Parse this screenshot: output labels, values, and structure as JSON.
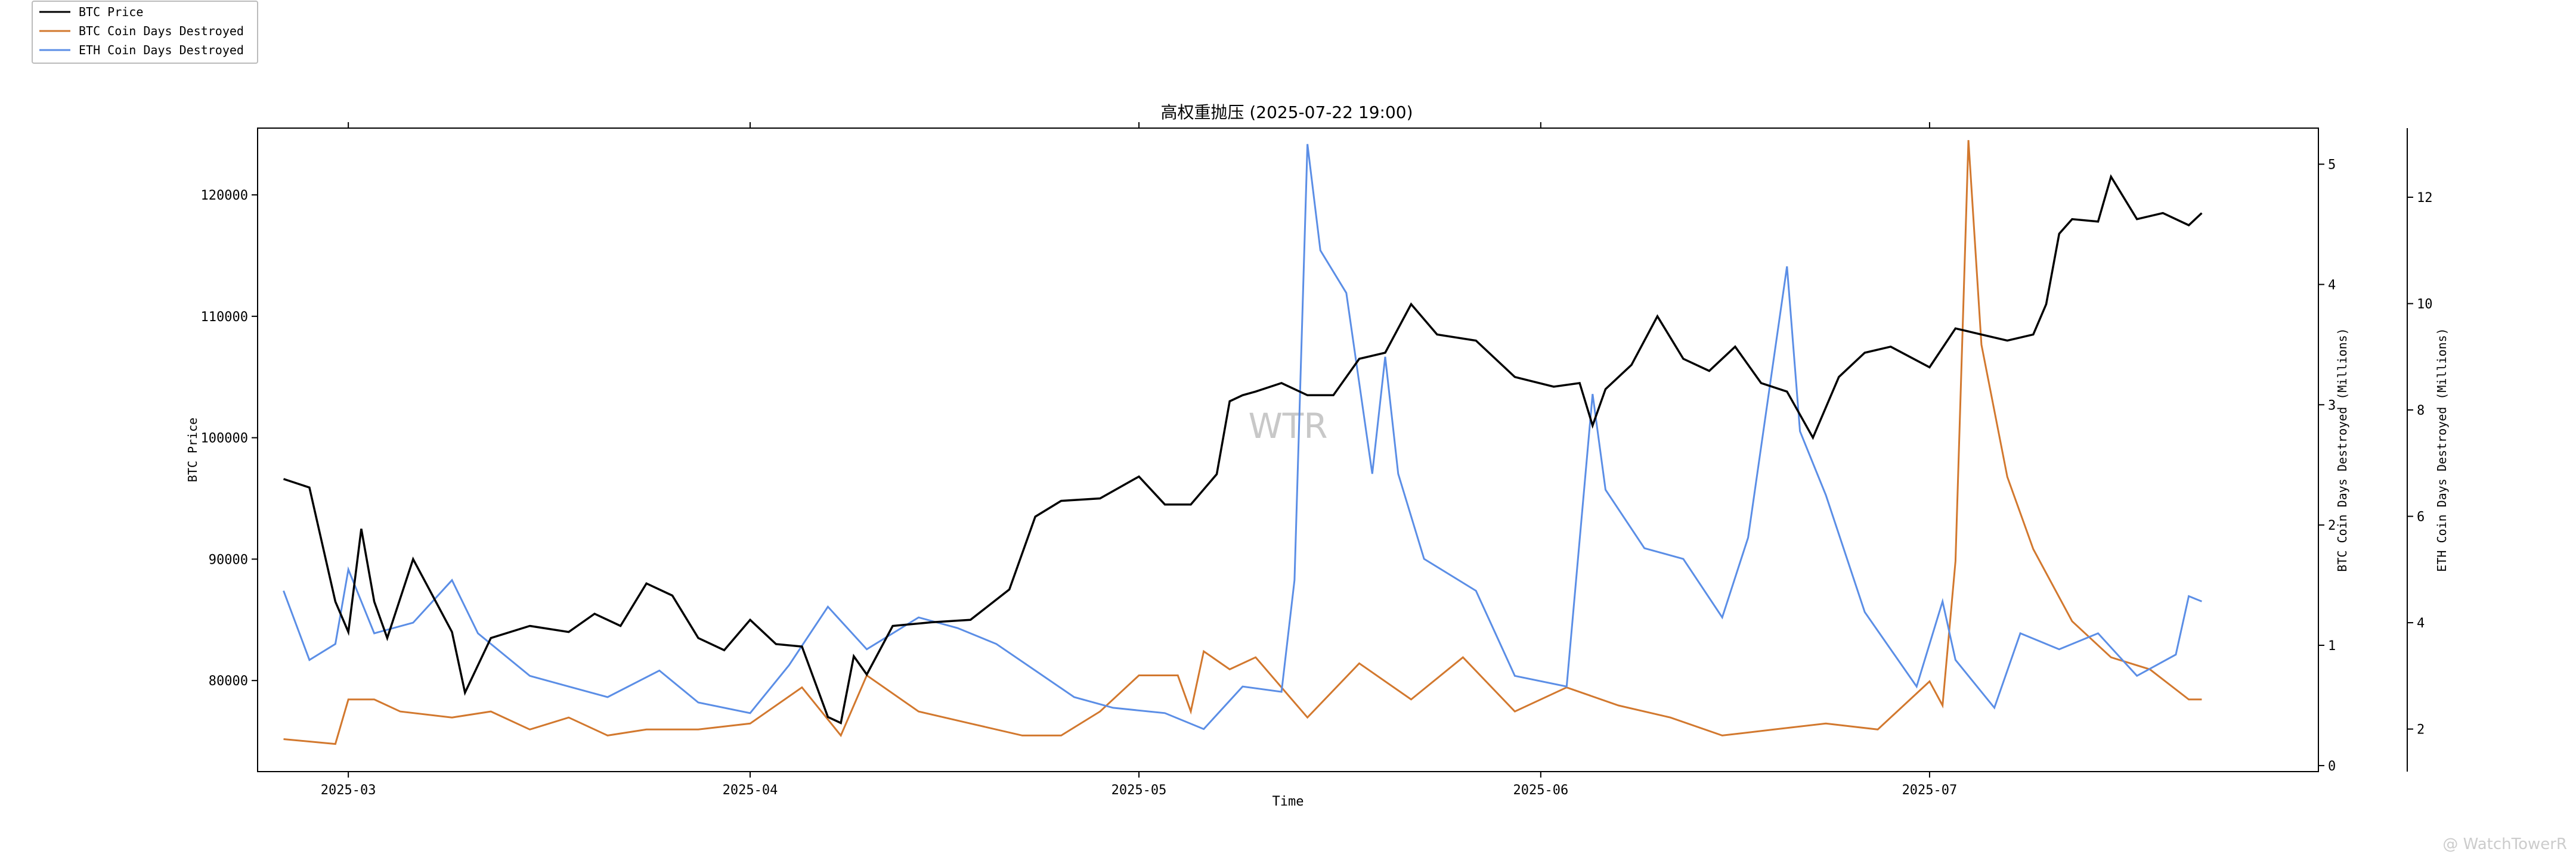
{
  "title": "高权重抛压 (2025-07-22 19:00)",
  "watermark": "WTR",
  "footer_watermark": "@ WatchTowerR",
  "legend": [
    {
      "label": "BTC Price",
      "color": "#000000"
    },
    {
      "label": "BTC Coin Days Destroyed",
      "color": "#d2782e"
    },
    {
      "label": "ETH Coin Days Destroyed",
      "color": "#5b8ee6"
    }
  ],
  "chart_data": {
    "type": "line",
    "title": "高权重抛压 (2025-07-22 19:00)",
    "xlabel": "Time",
    "x_range": [
      "2025-02-22",
      "2025-07-31"
    ],
    "x_ticks": [
      "2025-03",
      "2025-04",
      "2025-05",
      "2025-06",
      "2025-07"
    ],
    "axes": {
      "left": {
        "label": "BTC Price",
        "ylim": [
          72500,
          125500
        ],
        "ticks": [
          80000,
          90000,
          100000,
          110000,
          120000
        ]
      },
      "right1": {
        "label": "BTC Coin Days Destroyed (Millions)",
        "ylim": [
          -0.05,
          5.3
        ],
        "ticks": [
          0,
          1,
          2,
          3,
          4,
          5
        ]
      },
      "right2": {
        "label": "ETH Coin Days Destroyed (Millions)",
        "ylim": [
          1.2,
          13.3
        ],
        "ticks": [
          2,
          4,
          6,
          8,
          10,
          12
        ]
      }
    },
    "series": [
      {
        "name": "BTC Price",
        "axis": "left",
        "color": "#000000",
        "x": [
          "2025-02-24",
          "2025-02-26",
          "2025-02-28",
          "2025-03-01",
          "2025-03-02",
          "2025-03-03",
          "2025-03-04",
          "2025-03-06",
          "2025-03-07",
          "2025-03-09",
          "2025-03-10",
          "2025-03-12",
          "2025-03-15",
          "2025-03-18",
          "2025-03-20",
          "2025-03-22",
          "2025-03-24",
          "2025-03-26",
          "2025-03-28",
          "2025-03-30",
          "2025-04-01",
          "2025-04-03",
          "2025-04-05",
          "2025-04-07",
          "2025-04-08",
          "2025-04-09",
          "2025-04-10",
          "2025-04-12",
          "2025-04-15",
          "2025-04-18",
          "2025-04-21",
          "2025-04-23",
          "2025-04-25",
          "2025-04-28",
          "2025-05-01",
          "2025-05-03",
          "2025-05-05",
          "2025-05-07",
          "2025-05-08",
          "2025-05-09",
          "2025-05-10",
          "2025-05-12",
          "2025-05-14",
          "2025-05-16",
          "2025-05-18",
          "2025-05-20",
          "2025-05-22",
          "2025-05-24",
          "2025-05-27",
          "2025-05-30",
          "2025-06-02",
          "2025-06-04",
          "2025-06-05",
          "2025-06-06",
          "2025-06-08",
          "2025-06-10",
          "2025-06-12",
          "2025-06-14",
          "2025-06-16",
          "2025-06-18",
          "2025-06-20",
          "2025-06-22",
          "2025-06-24",
          "2025-06-26",
          "2025-06-28",
          "2025-07-01",
          "2025-07-03",
          "2025-07-05",
          "2025-07-07",
          "2025-07-09",
          "2025-07-10",
          "2025-07-11",
          "2025-07-12",
          "2025-07-14",
          "2025-07-15",
          "2025-07-17",
          "2025-07-19",
          "2025-07-21",
          "2025-07-22"
        ],
        "y": [
          96600,
          95900,
          86500,
          84000,
          92500,
          86500,
          83500,
          90000,
          88000,
          84000,
          79000,
          83500,
          84500,
          84000,
          85500,
          84500,
          88000,
          87000,
          83500,
          82500,
          85000,
          83000,
          82800,
          77000,
          76500,
          82000,
          80500,
          84500,
          84800,
          85000,
          87500,
          93500,
          94800,
          95000,
          96800,
          94500,
          94500,
          97000,
          103000,
          103500,
          103800,
          104500,
          103500,
          103500,
          106500,
          107000,
          111000,
          108500,
          108000,
          105000,
          104200,
          104500,
          101000,
          104000,
          106000,
          110000,
          106500,
          105500,
          107500,
          104500,
          103800,
          100000,
          105000,
          107000,
          107500,
          105800,
          109000,
          108500,
          108000,
          108500,
          111000,
          116800,
          118000,
          117800,
          121500,
          118000,
          118500,
          117500,
          118500
        ]
      },
      {
        "name": "BTC Coin Days Destroyed",
        "axis": "right1",
        "color": "#d2782e",
        "x": [
          "2025-02-24",
          "2025-02-28",
          "2025-03-01",
          "2025-03-03",
          "2025-03-05",
          "2025-03-09",
          "2025-03-12",
          "2025-03-15",
          "2025-03-18",
          "2025-03-21",
          "2025-03-24",
          "2025-03-28",
          "2025-04-01",
          "2025-04-05",
          "2025-04-08",
          "2025-04-10",
          "2025-04-14",
          "2025-04-18",
          "2025-04-22",
          "2025-04-25",
          "2025-04-28",
          "2025-05-01",
          "2025-05-04",
          "2025-05-05",
          "2025-05-06",
          "2025-05-08",
          "2025-05-10",
          "2025-05-14",
          "2025-05-18",
          "2025-05-22",
          "2025-05-26",
          "2025-05-30",
          "2025-06-03",
          "2025-06-07",
          "2025-06-11",
          "2025-06-15",
          "2025-06-19",
          "2025-06-23",
          "2025-06-27",
          "2025-07-01",
          "2025-07-02",
          "2025-07-03",
          "2025-07-04",
          "2025-07-05",
          "2025-07-07",
          "2025-07-09",
          "2025-07-12",
          "2025-07-15",
          "2025-07-18",
          "2025-07-21",
          "2025-07-22"
        ],
        "y": [
          0.22,
          0.18,
          0.55,
          0.55,
          0.45,
          0.4,
          0.45,
          0.3,
          0.4,
          0.25,
          0.3,
          0.3,
          0.35,
          0.65,
          0.25,
          0.75,
          0.45,
          0.35,
          0.25,
          0.25,
          0.45,
          0.75,
          0.75,
          0.45,
          0.95,
          0.8,
          0.9,
          0.4,
          0.85,
          0.55,
          0.9,
          0.45,
          0.65,
          0.5,
          0.4,
          0.25,
          0.3,
          0.35,
          0.3,
          0.7,
          0.5,
          1.7,
          5.2,
          3.5,
          2.4,
          1.8,
          1.2,
          0.9,
          0.8,
          0.55,
          0.55
        ]
      },
      {
        "name": "ETH Coin Days Destroyed",
        "axis": "right2",
        "color": "#5b8ee6",
        "x": [
          "2025-02-24",
          "2025-02-26",
          "2025-02-28",
          "2025-03-01",
          "2025-03-03",
          "2025-03-06",
          "2025-03-09",
          "2025-03-11",
          "2025-03-15",
          "2025-03-18",
          "2025-03-21",
          "2025-03-25",
          "2025-03-28",
          "2025-04-01",
          "2025-04-04",
          "2025-04-07",
          "2025-04-10",
          "2025-04-14",
          "2025-04-17",
          "2025-04-20",
          "2025-04-23",
          "2025-04-26",
          "2025-04-29",
          "2025-05-03",
          "2025-05-06",
          "2025-05-09",
          "2025-05-12",
          "2025-05-13",
          "2025-05-14",
          "2025-05-15",
          "2025-05-17",
          "2025-05-19",
          "2025-05-20",
          "2025-05-21",
          "2025-05-23",
          "2025-05-27",
          "2025-05-30",
          "2025-06-03",
          "2025-06-05",
          "2025-06-06",
          "2025-06-09",
          "2025-06-12",
          "2025-06-15",
          "2025-06-17",
          "2025-06-20",
          "2025-06-21",
          "2025-06-23",
          "2025-06-26",
          "2025-06-30",
          "2025-07-02",
          "2025-07-03",
          "2025-07-06",
          "2025-07-08",
          "2025-07-11",
          "2025-07-14",
          "2025-07-17",
          "2025-07-20",
          "2025-07-21",
          "2025-07-22"
        ],
        "y": [
          4.6,
          3.3,
          3.6,
          5.0,
          3.8,
          4.0,
          4.8,
          3.8,
          3.0,
          2.8,
          2.6,
          3.1,
          2.5,
          2.3,
          3.2,
          4.3,
          3.5,
          4.1,
          3.9,
          3.6,
          3.1,
          2.6,
          2.4,
          2.3,
          2.0,
          2.8,
          2.7,
          4.8,
          13.0,
          11.0,
          10.2,
          6.8,
          9.0,
          6.8,
          5.2,
          4.6,
          3.0,
          2.8,
          8.3,
          6.5,
          5.4,
          5.2,
          4.1,
          5.6,
          10.7,
          7.6,
          6.4,
          4.2,
          2.8,
          4.4,
          3.3,
          2.4,
          3.8,
          3.5,
          3.8,
          3.0,
          3.4,
          4.5,
          4.4
        ]
      }
    ]
  }
}
